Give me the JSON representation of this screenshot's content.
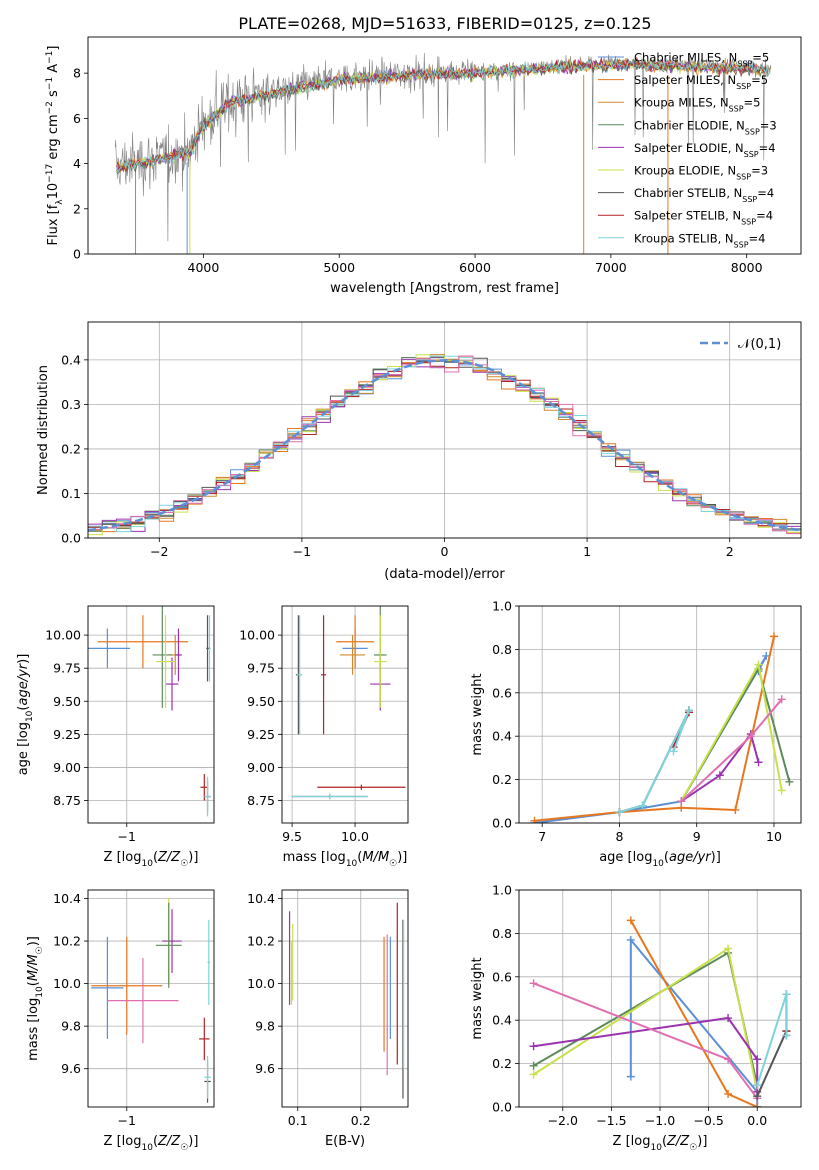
{
  "figure": {
    "title": "PLATE=0268, MJD=51633, FIBERID=0125, z=0.125"
  },
  "colors": {
    "Chabrier MILES": "#5b8fd6",
    "Salpeter MILES": "#e6771f",
    "Kroupa MILES": "#cf8a2e",
    "Chabrier ELODIE": "#5c8a5a",
    "Salpeter ELODIE": "#9b33b0",
    "Kroupa ELODIE": "#c9e04c",
    "Chabrier STELIB": "#555555",
    "Salpeter STELIB": "#b22222",
    "Kroupa STELIB": "#7fd3dc",
    "data": "#808080",
    "gaussian": "#5b8fd6"
  },
  "chart_data": [
    {
      "id": "spectrum",
      "type": "line",
      "xlabel": "wavelength [Angstrom, rest frame]",
      "ylabel": "Flux [f_λ10^-17 erg cm^-2 s^-1 A^-1]",
      "xlim": [
        3150,
        8400
      ],
      "ylim": [
        0,
        9.6
      ],
      "xticks": [
        4000,
        5000,
        6000,
        7000,
        8000
      ],
      "yticks": [
        0,
        2,
        4,
        6,
        8
      ],
      "grid": false,
      "legend": "upper-right",
      "data_range": [
        3350,
        8180
      ],
      "continuum": [
        [
          3350,
          3.9
        ],
        [
          3700,
          4.3
        ],
        [
          3900,
          4.6
        ],
        [
          4000,
          5.8
        ],
        [
          4200,
          6.8
        ],
        [
          4500,
          7.2
        ],
        [
          5000,
          7.8
        ],
        [
          5500,
          8.0
        ],
        [
          6000,
          8.1
        ],
        [
          6500,
          8.3
        ],
        [
          7000,
          8.5
        ],
        [
          7500,
          8.4
        ],
        [
          8000,
          8.3
        ],
        [
          8180,
          8.2
        ]
      ],
      "series": [
        {
          "name": "Chabrier MILES",
          "n_ssp": "5"
        },
        {
          "name": "Salpeter MILES",
          "n_ssp": "5"
        },
        {
          "name": "Kroupa MILES",
          "n_ssp": "5"
        },
        {
          "name": "Chabrier ELODIE",
          "n_ssp": "3"
        },
        {
          "name": "Salpeter ELODIE",
          "n_ssp": "4"
        },
        {
          "name": "Kroupa ELODIE",
          "n_ssp": "3"
        },
        {
          "name": "Chabrier STELIB",
          "n_ssp": "4"
        },
        {
          "name": "Salpeter STELIB",
          "n_ssp": "4"
        },
        {
          "name": "Kroupa STELIB",
          "n_ssp": "4"
        }
      ]
    },
    {
      "id": "residuals",
      "type": "histogram",
      "xlabel": "(data-model)/error",
      "ylabel": "Normed distribution",
      "xlim": [
        -2.5,
        2.5
      ],
      "ylim": [
        0,
        0.485
      ],
      "xticks": [
        -2,
        -1,
        0,
        1,
        2
      ],
      "yticks": [
        0.0,
        0.1,
        0.2,
        0.3,
        0.4
      ],
      "grid": true,
      "legend": "upper-right",
      "gaussian_label": "𝒩(0,1)",
      "bin_width": 0.1,
      "bin_start": -2.5
    },
    {
      "id": "age_vs_Z",
      "type": "errorbar",
      "xlabel": "Z [log10(Z/Z☉)]",
      "ylabel": "age [log10(age/yr)]",
      "xlim": [
        -1.6,
        0.35
      ],
      "ylim": [
        8.58,
        10.22
      ],
      "xticks": [
        -1
      ],
      "yticks": [
        8.75,
        9.0,
        9.25,
        9.5,
        9.75,
        10.0
      ],
      "grid": true,
      "points": [
        {
          "series": "Chabrier MILES",
          "x": -1.3,
          "xerr": 0.35,
          "y": 9.9,
          "yerr": 0.15
        },
        {
          "series": "Salpeter MILES",
          "x": -0.75,
          "xerr": 0.7,
          "y": 9.95,
          "yerr": 0.2
        },
        {
          "series": "Kroupa MILES",
          "x": -0.25,
          "xerr": 0.1,
          "y": 9.85,
          "yerr": 0.15
        },
        {
          "series": "Chabrier ELODIE",
          "x": -0.45,
          "xerr": 0.15,
          "y": 9.85,
          "yerr": 0.4
        },
        {
          "series": "Salpeter ELODIE",
          "x": -0.3,
          "xerr": 0.1,
          "y": 9.63,
          "yerr": 0.2
        },
        {
          "series": "Kroupa ELODIE",
          "x": -0.4,
          "xerr": 0.15,
          "y": 9.8,
          "yerr": 0.35
        },
        {
          "series": "Chabrier STELIB",
          "x": 0.25,
          "xerr": 0.05,
          "y": 8.78,
          "yerr": 0.12
        },
        {
          "series": "Salpeter STELIB",
          "x": 0.2,
          "xerr": 0.06,
          "y": 8.85,
          "yerr": 0.1
        },
        {
          "series": "Kroupa STELIB",
          "x": 0.25,
          "xerr": 0.05,
          "y": 8.78,
          "yerr": 0.15
        },
        {
          "series": "Salpeter ELODIE",
          "x": -0.2,
          "xerr": 0.05,
          "y": 9.85,
          "yerr": 0.2
        },
        {
          "series": "Kroupa STELIB",
          "x": 0.28,
          "xerr": 0.02,
          "y": 9.9,
          "yerr": 0.25
        },
        {
          "series": "Chabrier STELIB",
          "x": 0.25,
          "xerr": 0.02,
          "y": 9.9,
          "yerr": 0.25
        }
      ]
    },
    {
      "id": "age_vs_mass",
      "type": "errorbar",
      "xlabel": "mass [log10(M/M☉)]",
      "ylabel": "",
      "xlim": [
        9.42,
        10.42
      ],
      "ylim": [
        8.58,
        10.22
      ],
      "xticks": [
        9.5,
        10.0
      ],
      "yticks": [
        8.75,
        9.0,
        9.25,
        9.5,
        9.75,
        10.0
      ],
      "grid": true,
      "points": [
        {
          "series": "Chabrier MILES",
          "x": 10.0,
          "xerr": 0.1,
          "y": 9.9,
          "yerr": 0.15
        },
        {
          "series": "Salpeter MILES",
          "x": 10.0,
          "xerr": 0.15,
          "y": 9.95,
          "yerr": 0.2
        },
        {
          "series": "Kroupa MILES",
          "x": 9.98,
          "xerr": 0.1,
          "y": 9.85,
          "yerr": 0.15
        },
        {
          "series": "Chabrier ELODIE",
          "x": 10.2,
          "xerr": 0.05,
          "y": 9.85,
          "yerr": 0.4
        },
        {
          "series": "Salpeter ELODIE",
          "x": 10.2,
          "xerr": 0.08,
          "y": 9.63,
          "yerr": 0.2
        },
        {
          "series": "Kroupa ELODIE",
          "x": 10.2,
          "xerr": 0.05,
          "y": 9.8,
          "yerr": 0.35
        },
        {
          "series": "Chabrier STELIB",
          "x": 9.55,
          "xerr": 0.02,
          "y": 9.7,
          "yerr": 0.45
        },
        {
          "series": "Salpeter STELIB",
          "x": 9.75,
          "xerr": 0.02,
          "y": 9.7,
          "yerr": 0.45
        },
        {
          "series": "Kroupa STELIB",
          "x": 9.56,
          "xerr": 0.02,
          "y": 9.7,
          "yerr": 0.45
        },
        {
          "series": "Salpeter STELIB",
          "x": 10.05,
          "xerr": 0.35,
          "y": 8.85,
          "yerr": 0.02
        },
        {
          "series": "Chabrier STELIB",
          "x": 9.8,
          "xerr": 0.3,
          "y": 8.78,
          "yerr": 0.02
        },
        {
          "series": "Kroupa STELIB",
          "x": 9.8,
          "xerr": 0.3,
          "y": 8.78,
          "yerr": 0.02
        }
      ]
    },
    {
      "id": "weight_vs_age",
      "type": "line",
      "xlabel": "age [log10(age/yr)]",
      "ylabel": "mass weight",
      "xlim": [
        6.7,
        10.35
      ],
      "ylim": [
        0,
        1.0
      ],
      "xticks": [
        7,
        8,
        9,
        10
      ],
      "yticks": [
        0.0,
        0.2,
        0.4,
        0.6,
        0.8,
        1.0
      ],
      "grid": true,
      "series": [
        {
          "name": "Chabrier MILES",
          "x": [
            6.9,
            8.0,
            8.8,
            9.9,
            9.8
          ],
          "y": [
            0.0,
            0.05,
            0.1,
            0.77,
            0.7
          ]
        },
        {
          "name": "Salpeter MILES",
          "x": [
            6.9,
            8.0,
            8.8,
            9.5,
            10.0
          ],
          "y": [
            0.01,
            0.05,
            0.07,
            0.06,
            0.86
          ]
        },
        {
          "name": "Chabrier ELODIE",
          "x": [
            8.8,
            9.8,
            10.2
          ],
          "y": [
            0.1,
            0.71,
            0.19
          ]
        },
        {
          "name": "Kroupa ELODIE",
          "x": [
            8.8,
            9.8,
            10.1
          ],
          "y": [
            0.1,
            0.73,
            0.15
          ]
        },
        {
          "name": "Salpeter ELODIE",
          "x": [
            8.8,
            9.3,
            9.7,
            9.8
          ],
          "y": [
            0.1,
            0.22,
            0.41,
            0.28
          ]
        },
        {
          "name": "Pink",
          "x": [
            8.8,
            9.7,
            10.1
          ],
          "y": [
            0.1,
            0.4,
            0.57
          ]
        },
        {
          "name": "Chabrier STELIB",
          "x": [
            8.0,
            8.3,
            8.9
          ],
          "y": [
            0.05,
            0.08,
            0.52
          ]
        },
        {
          "name": "Salpeter STELIB",
          "x": [
            8.7,
            8.9
          ],
          "y": [
            0.35,
            0.51
          ]
        },
        {
          "name": "Kroupa STELIB",
          "x": [
            8.0,
            8.3,
            8.9,
            8.7
          ],
          "y": [
            0.05,
            0.08,
            0.52,
            0.33
          ]
        }
      ]
    },
    {
      "id": "mass_vs_Z",
      "type": "errorbar",
      "xlabel": "Z [log10(Z/Z☉)]",
      "ylabel": "mass [log10(M/M☉)]",
      "xlim": [
        -1.6,
        0.35
      ],
      "ylim": [
        9.42,
        10.44
      ],
      "xticks": [
        -1
      ],
      "yticks": [
        9.6,
        9.8,
        10.0,
        10.2,
        10.4
      ],
      "grid": true,
      "points": [
        {
          "series": "Chabrier MILES",
          "x": -1.3,
          "xerr": 0.25,
          "y": 9.98,
          "yerr": 0.24
        },
        {
          "series": "Salpeter MILES",
          "x": -1.0,
          "xerr": 0.55,
          "y": 9.99,
          "yerr": 0.23
        },
        {
          "series": "Pink",
          "x": -0.75,
          "xerr": 0.55,
          "y": 9.92,
          "yerr": 0.2
        },
        {
          "series": "Kroupa ELODIE",
          "x": -0.35,
          "xerr": 0.1,
          "y": 10.2,
          "yerr": 0.2
        },
        {
          "series": "Salpeter ELODIE",
          "x": -0.3,
          "xerr": 0.15,
          "y": 10.2,
          "yerr": 0.15
        },
        {
          "series": "Chabrier ELODIE",
          "x": -0.35,
          "xerr": 0.2,
          "y": 10.18,
          "yerr": 0.2
        },
        {
          "series": "Salpeter STELIB",
          "x": 0.2,
          "xerr": 0.08,
          "y": 9.74,
          "yerr": 0.1
        },
        {
          "series": "Chabrier STELIB",
          "x": 0.25,
          "xerr": 0.05,
          "y": 9.54,
          "yerr": 0.1
        },
        {
          "series": "Kroupa STELIB",
          "x": 0.25,
          "xerr": 0.05,
          "y": 9.56,
          "yerr": 0.1
        },
        {
          "series": "Kroupa STELIB",
          "x": 0.27,
          "xerr": 0.02,
          "y": 10.1,
          "yerr": 0.2
        }
      ]
    },
    {
      "id": "mass_vs_ebv",
      "type": "errorbar",
      "xlabel": "E(B-V)",
      "ylabel": "",
      "xlim": [
        0.075,
        0.275
      ],
      "ylim": [
        9.42,
        10.44
      ],
      "xticks": [
        0.1,
        0.2
      ],
      "yticks": [
        9.6,
        9.8,
        10.0,
        10.2,
        10.4
      ],
      "grid": true,
      "points": [
        {
          "series": "Salpeter ELODIE",
          "x": 0.087,
          "xerr": 0.0,
          "y": 10.12,
          "yerr": 0.22
        },
        {
          "series": "Kroupa ELODIE",
          "x": 0.09,
          "xerr": 0.0,
          "y": 10.05,
          "yerr": 0.15
        },
        {
          "series": "Kroupa ELODIE",
          "x": 0.092,
          "xerr": 0.0,
          "y": 10.1,
          "yerr": 0.18
        },
        {
          "series": "Salpeter MILES",
          "x": 0.237,
          "xerr": 0.0,
          "y": 9.95,
          "yerr": 0.27
        },
        {
          "series": "Pink",
          "x": 0.242,
          "xerr": 0.0,
          "y": 9.9,
          "yerr": 0.33
        },
        {
          "series": "Chabrier MILES",
          "x": 0.247,
          "xerr": 0.0,
          "y": 9.98,
          "yerr": 0.24
        },
        {
          "series": "Salpeter STELIB",
          "x": 0.258,
          "xerr": 0.0,
          "y": 10.0,
          "yerr": 0.38
        },
        {
          "series": "Chabrier STELIB",
          "x": 0.267,
          "xerr": 0.0,
          "y": 9.88,
          "yerr": 0.42
        },
        {
          "series": "Kroupa STELIB",
          "x": 0.268,
          "xerr": 0.0,
          "y": 9.95,
          "yerr": 0.35
        }
      ]
    },
    {
      "id": "weight_vs_Z",
      "type": "line",
      "xlabel": "Z [log10(Z/Z☉)]",
      "ylabel": "mass weight",
      "xlim": [
        -2.45,
        0.45
      ],
      "ylim": [
        0,
        1.0
      ],
      "xticks": [
        -2.0,
        -1.5,
        -1.0,
        -0.5,
        0.0
      ],
      "yticks": [
        0.0,
        0.2,
        0.4,
        0.6,
        0.8,
        1.0
      ],
      "grid": true,
      "series": [
        {
          "name": "Chabrier MILES",
          "x": [
            -1.3,
            -1.3,
            0.0,
            0.0
          ],
          "y": [
            0.14,
            0.77,
            0.07,
            0.0
          ]
        },
        {
          "name": "Salpeter MILES",
          "x": [
            -1.3,
            -0.3,
            0.0
          ],
          "y": [
            0.86,
            0.06,
            0.0
          ]
        },
        {
          "name": "Chabrier ELODIE",
          "x": [
            -2.3,
            -0.3,
            0.0
          ],
          "y": [
            0.19,
            0.71,
            0.1
          ]
        },
        {
          "name": "Kroupa ELODIE",
          "x": [
            -2.3,
            -0.3,
            0.0
          ],
          "y": [
            0.15,
            0.73,
            0.07
          ]
        },
        {
          "name": "Salpeter ELODIE",
          "x": [
            -2.3,
            -0.3,
            0.0,
            0.0
          ],
          "y": [
            0.28,
            0.41,
            0.22,
            0.07
          ]
        },
        {
          "name": "Pink",
          "x": [
            -2.3,
            -0.3,
            0.0
          ],
          "y": [
            0.57,
            0.22,
            0.04
          ]
        },
        {
          "name": "Chabrier STELIB",
          "x": [
            0.0,
            0.3,
            0.3
          ],
          "y": [
            0.05,
            0.35,
            0.52
          ]
        },
        {
          "name": "Salpeter STELIB",
          "x": [
            0.3,
            0.3
          ],
          "y": [
            0.35,
            0.33
          ]
        },
        {
          "name": "Kroupa STELIB",
          "x": [
            0.3,
            0.3,
            0.0
          ],
          "y": [
            0.33,
            0.52,
            0.1
          ]
        }
      ]
    }
  ]
}
